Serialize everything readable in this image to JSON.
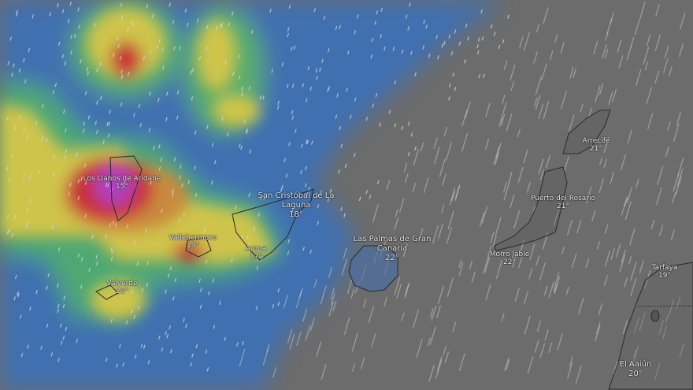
{
  "map": {
    "layer": "precipitation / thunderstorms",
    "colors": {
      "ocean": "#6c6c6c",
      "light": "#3f6fb0",
      "moderate": "#4fb06a",
      "heavy": "#d2c84a",
      "intense": "#c8303a",
      "extreme": "#b040c0"
    },
    "cities": [
      {
        "name": "Los Llanos de Aridane",
        "temp": "15°"
      },
      {
        "name": "San Cristóbal de La Laguna",
        "temp": "18°"
      },
      {
        "name": "Vallehermoso",
        "temp": "19°"
      },
      {
        "name": "Arona",
        "temp": "17°"
      },
      {
        "name": "Valverde",
        "temp": "20°"
      },
      {
        "name": "Las Palmas de Gran Canaria",
        "temp": "22°"
      },
      {
        "name": "Arrecife",
        "temp": "21°"
      },
      {
        "name": "Puerto del Rosario",
        "temp": "21°"
      },
      {
        "name": "Morro Jable",
        "temp": "22°"
      },
      {
        "name": "Tarfaya",
        "temp": "19°"
      },
      {
        "name": "El Aaiún",
        "temp": "20°"
      }
    ]
  }
}
